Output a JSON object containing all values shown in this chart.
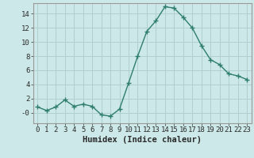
{
  "x": [
    0,
    1,
    2,
    3,
    4,
    5,
    6,
    7,
    8,
    9,
    10,
    11,
    12,
    13,
    14,
    15,
    16,
    17,
    18,
    19,
    20,
    21,
    22,
    23
  ],
  "y": [
    0.8,
    0.3,
    0.8,
    1.8,
    0.9,
    1.2,
    0.9,
    -0.3,
    -0.5,
    0.5,
    4.2,
    8.0,
    11.5,
    13.0,
    15.0,
    14.8,
    13.5,
    12.0,
    9.5,
    7.5,
    6.8,
    5.5,
    5.2,
    4.7
  ],
  "line_color": "#2e7d6e",
  "marker": "+",
  "marker_size": 4,
  "linewidth": 1.0,
  "xlabel": "Humidex (Indice chaleur)",
  "xlim": [
    -0.5,
    23.5
  ],
  "ylim": [
    -1.5,
    15.5
  ],
  "yticks": [
    0,
    2,
    4,
    6,
    8,
    10,
    12,
    14
  ],
  "ytick_labels": [
    "-0",
    "2",
    "4",
    "6",
    "8",
    "10",
    "12",
    "14"
  ],
  "xticks": [
    0,
    1,
    2,
    3,
    4,
    5,
    6,
    7,
    8,
    9,
    10,
    11,
    12,
    13,
    14,
    15,
    16,
    17,
    18,
    19,
    20,
    21,
    22,
    23
  ],
  "bg_color": "#cde8e8",
  "grid_color": "#b0d0d0",
  "xlabel_fontsize": 7.5,
  "tick_fontsize": 6.5
}
